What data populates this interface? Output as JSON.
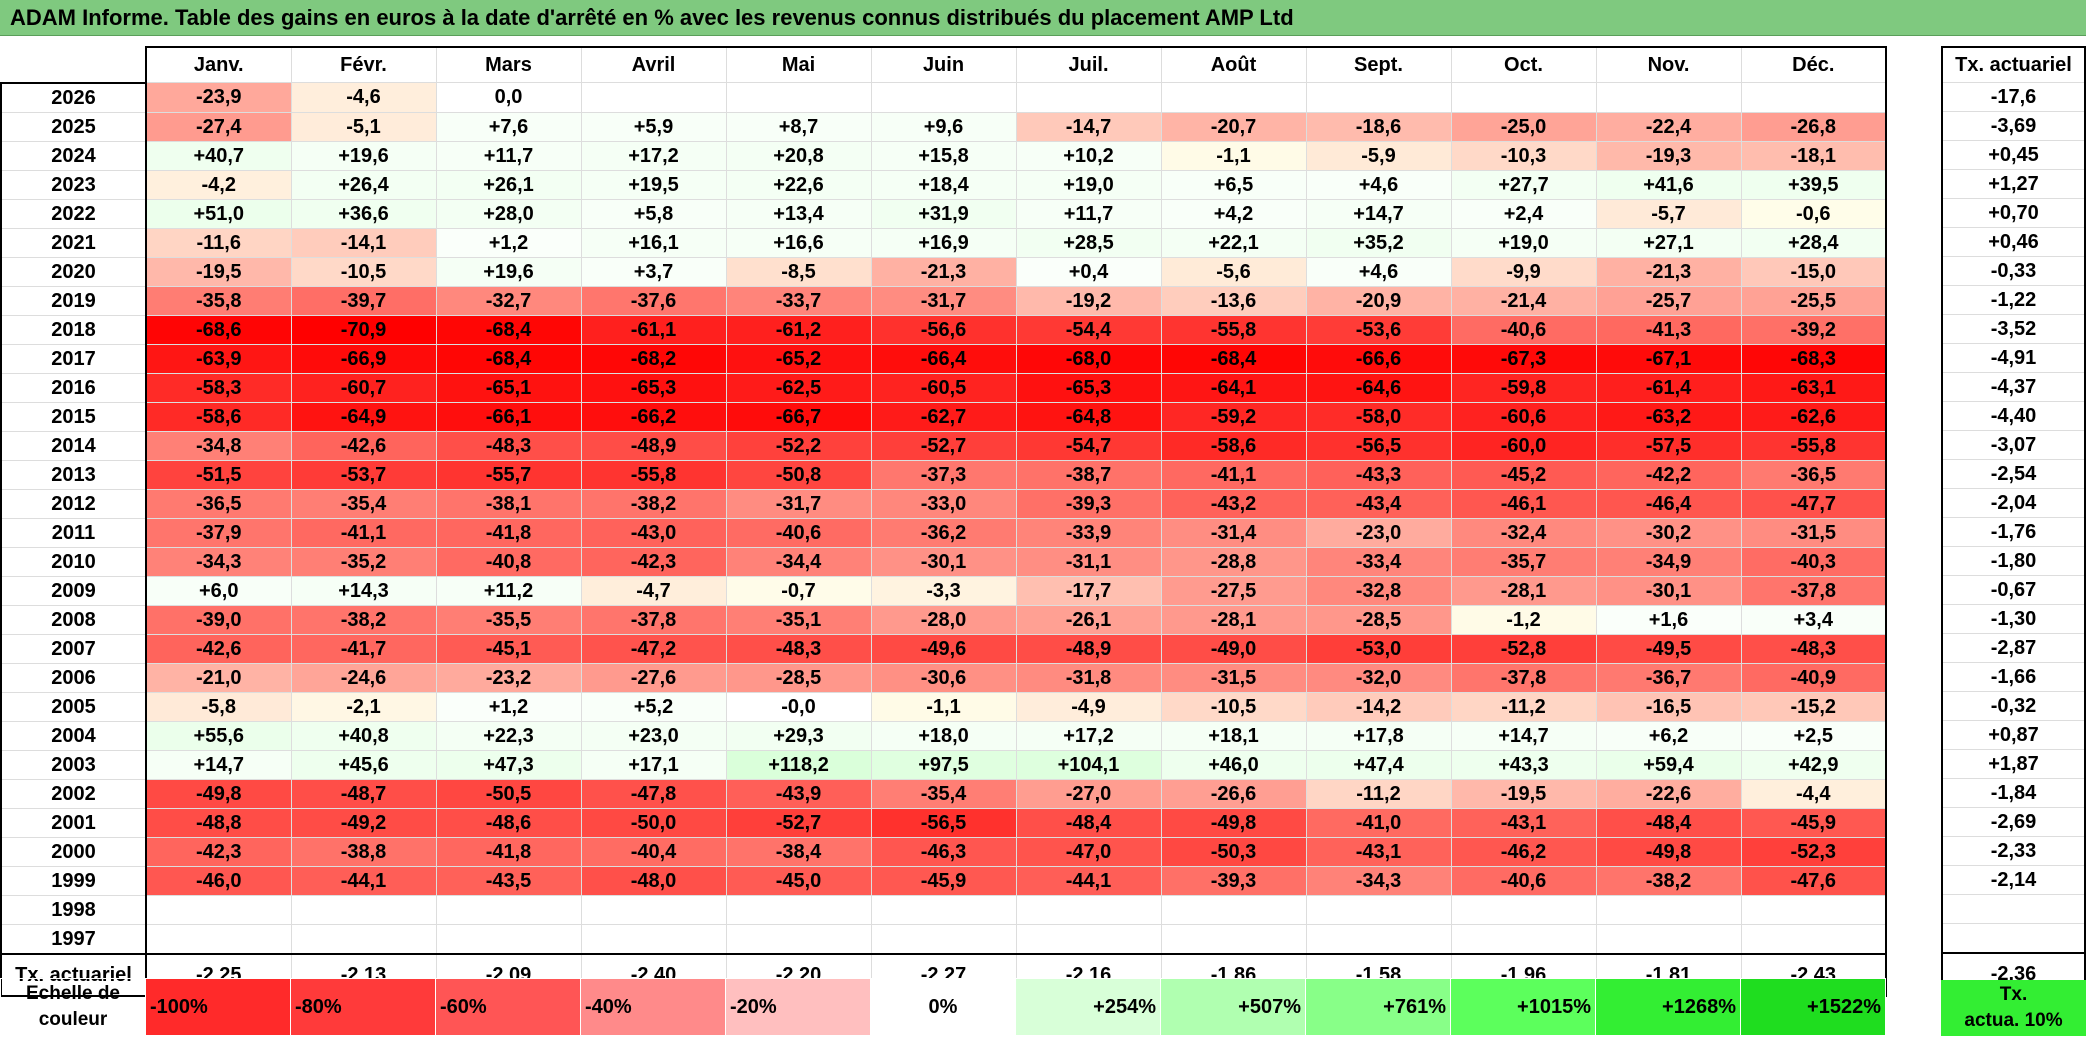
{
  "title": "ADAM Informe. Table des gains en euros à la date d'arrêté en % avec les revenus connus distribués du placement AMP Ltd",
  "months": [
    "Janv.",
    "Févr.",
    "Mars",
    "Avril",
    "Mai",
    "Juin",
    "Juil.",
    "Août",
    "Sept.",
    "Oct.",
    "Nov.",
    "Déc."
  ],
  "side_header": "Tx. actuariel",
  "rows": [
    {
      "year": "2026",
      "v": [
        "-23,9",
        "-4,6",
        "0,0",
        "",
        "",
        "",
        "",
        "",
        "",
        "",
        "",
        ""
      ],
      "tx": "-17,6"
    },
    {
      "year": "2025",
      "v": [
        "-27,4",
        "-5,1",
        "+7,6",
        "+5,9",
        "+8,7",
        "+9,6",
        "-14,7",
        "-20,7",
        "-18,6",
        "-25,0",
        "-22,4",
        "-26,8"
      ],
      "tx": "-3,69"
    },
    {
      "year": "2024",
      "v": [
        "+40,7",
        "+19,6",
        "+11,7",
        "+17,2",
        "+20,8",
        "+15,8",
        "+10,2",
        "-1,1",
        "-5,9",
        "-10,3",
        "-19,3",
        "-18,1"
      ],
      "tx": "+0,45"
    },
    {
      "year": "2023",
      "v": [
        "-4,2",
        "+26,4",
        "+26,1",
        "+19,5",
        "+22,6",
        "+18,4",
        "+19,0",
        "+6,5",
        "+4,6",
        "+27,7",
        "+41,6",
        "+39,5"
      ],
      "tx": "+1,27"
    },
    {
      "year": "2022",
      "v": [
        "+51,0",
        "+36,6",
        "+28,0",
        "+5,8",
        "+13,4",
        "+31,9",
        "+11,7",
        "+4,2",
        "+14,7",
        "+2,4",
        "-5,7",
        "-0,6"
      ],
      "tx": "+0,70"
    },
    {
      "year": "2021",
      "v": [
        "-11,6",
        "-14,1",
        "+1,2",
        "+16,1",
        "+16,6",
        "+16,9",
        "+28,5",
        "+22,1",
        "+35,2",
        "+19,0",
        "+27,1",
        "+28,4"
      ],
      "tx": "+0,46"
    },
    {
      "year": "2020",
      "v": [
        "-19,5",
        "-10,5",
        "+19,6",
        "+3,7",
        "-8,5",
        "-21,3",
        "+0,4",
        "-5,6",
        "+4,6",
        "-9,9",
        "-21,3",
        "-15,0"
      ],
      "tx": "-0,33"
    },
    {
      "year": "2019",
      "v": [
        "-35,8",
        "-39,7",
        "-32,7",
        "-37,6",
        "-33,7",
        "-31,7",
        "-19,2",
        "-13,6",
        "-20,9",
        "-21,4",
        "-25,7",
        "-25,5"
      ],
      "tx": "-1,22"
    },
    {
      "year": "2018",
      "v": [
        "-68,6",
        "-70,9",
        "-68,4",
        "-61,1",
        "-61,2",
        "-56,6",
        "-54,4",
        "-55,8",
        "-53,6",
        "-40,6",
        "-41,3",
        "-39,2"
      ],
      "tx": "-3,52"
    },
    {
      "year": "2017",
      "v": [
        "-63,9",
        "-66,9",
        "-68,4",
        "-68,2",
        "-65,2",
        "-66,4",
        "-68,0",
        "-68,4",
        "-66,6",
        "-67,3",
        "-67,1",
        "-68,3"
      ],
      "tx": "-4,91"
    },
    {
      "year": "2016",
      "v": [
        "-58,3",
        "-60,7",
        "-65,1",
        "-65,3",
        "-62,5",
        "-60,5",
        "-65,3",
        "-64,1",
        "-64,6",
        "-59,8",
        "-61,4",
        "-63,1"
      ],
      "tx": "-4,37"
    },
    {
      "year": "2015",
      "v": [
        "-58,6",
        "-64,9",
        "-66,1",
        "-66,2",
        "-66,7",
        "-62,7",
        "-64,8",
        "-59,2",
        "-58,0",
        "-60,6",
        "-63,2",
        "-62,6"
      ],
      "tx": "-4,40"
    },
    {
      "year": "2014",
      "v": [
        "-34,8",
        "-42,6",
        "-48,3",
        "-48,9",
        "-52,2",
        "-52,7",
        "-54,7",
        "-58,6",
        "-56,5",
        "-60,0",
        "-57,5",
        "-55,8"
      ],
      "tx": "-3,07"
    },
    {
      "year": "2013",
      "v": [
        "-51,5",
        "-53,7",
        "-55,7",
        "-55,8",
        "-50,8",
        "-37,3",
        "-38,7",
        "-41,1",
        "-43,3",
        "-45,2",
        "-42,2",
        "-36,5"
      ],
      "tx": "-2,54"
    },
    {
      "year": "2012",
      "v": [
        "-36,5",
        "-35,4",
        "-38,1",
        "-38,2",
        "-31,7",
        "-33,0",
        "-39,3",
        "-43,2",
        "-43,4",
        "-46,1",
        "-46,4",
        "-47,7"
      ],
      "tx": "-2,04"
    },
    {
      "year": "2011",
      "v": [
        "-37,9",
        "-41,1",
        "-41,8",
        "-43,0",
        "-40,6",
        "-36,2",
        "-33,9",
        "-31,4",
        "-23,0",
        "-32,4",
        "-30,2",
        "-31,5"
      ],
      "tx": "-1,76"
    },
    {
      "year": "2010",
      "v": [
        "-34,3",
        "-35,2",
        "-40,8",
        "-42,3",
        "-34,4",
        "-30,1",
        "-31,1",
        "-28,8",
        "-33,4",
        "-35,7",
        "-34,9",
        "-40,3"
      ],
      "tx": "-1,80"
    },
    {
      "year": "2009",
      "v": [
        "+6,0",
        "+14,3",
        "+11,2",
        "-4,7",
        "-0,7",
        "-3,3",
        "-17,7",
        "-27,5",
        "-32,8",
        "-28,1",
        "-30,1",
        "-37,8"
      ],
      "tx": "-0,67"
    },
    {
      "year": "2008",
      "v": [
        "-39,0",
        "-38,2",
        "-35,5",
        "-37,8",
        "-35,1",
        "-28,0",
        "-26,1",
        "-28,1",
        "-28,5",
        "-1,2",
        "+1,6",
        "+3,4"
      ],
      "tx": "-1,30"
    },
    {
      "year": "2007",
      "v": [
        "-42,6",
        "-41,7",
        "-45,1",
        "-47,2",
        "-48,3",
        "-49,6",
        "-48,9",
        "-49,0",
        "-53,0",
        "-52,8",
        "-49,5",
        "-48,3"
      ],
      "tx": "-2,87"
    },
    {
      "year": "2006",
      "v": [
        "-21,0",
        "-24,6",
        "-23,2",
        "-27,6",
        "-28,5",
        "-30,6",
        "-31,8",
        "-31,5",
        "-32,0",
        "-37,8",
        "-36,7",
        "-40,9"
      ],
      "tx": "-1,66"
    },
    {
      "year": "2005",
      "v": [
        "-5,8",
        "-2,1",
        "+1,2",
        "+5,2",
        "-0,0",
        "-1,1",
        "-4,9",
        "-10,5",
        "-14,2",
        "-11,2",
        "-16,5",
        "-15,2"
      ],
      "tx": "-0,32"
    },
    {
      "year": "2004",
      "v": [
        "+55,6",
        "+40,8",
        "+22,3",
        "+23,0",
        "+29,3",
        "+18,0",
        "+17,2",
        "+18,1",
        "+17,8",
        "+14,7",
        "+6,2",
        "+2,5"
      ],
      "tx": "+0,87"
    },
    {
      "year": "2003",
      "v": [
        "+14,7",
        "+45,6",
        "+47,3",
        "+17,1",
        "+118,2",
        "+97,5",
        "+104,1",
        "+46,0",
        "+47,4",
        "+43,3",
        "+59,4",
        "+42,9"
      ],
      "tx": "+1,87"
    },
    {
      "year": "2002",
      "v": [
        "-49,8",
        "-48,7",
        "-50,5",
        "-47,8",
        "-43,9",
        "-35,4",
        "-27,0",
        "-26,6",
        "-11,2",
        "-19,5",
        "-22,6",
        "-4,4"
      ],
      "tx": "-1,84"
    },
    {
      "year": "2001",
      "v": [
        "-48,8",
        "-49,2",
        "-48,6",
        "-50,0",
        "-52,7",
        "-56,5",
        "-48,4",
        "-49,8",
        "-41,0",
        "-43,1",
        "-48,4",
        "-45,9"
      ],
      "tx": "-2,69"
    },
    {
      "year": "2000",
      "v": [
        "-42,3",
        "-38,8",
        "-41,8",
        "-40,4",
        "-38,4",
        "-46,3",
        "-47,0",
        "-50,3",
        "-43,1",
        "-46,2",
        "-49,8",
        "-52,3"
      ],
      "tx": "-2,33"
    },
    {
      "year": "1999",
      "v": [
        "-46,0",
        "-44,1",
        "-43,5",
        "-48,0",
        "-45,0",
        "-45,9",
        "-44,1",
        "-39,3",
        "-34,3",
        "-40,6",
        "-38,2",
        "-47,6"
      ],
      "tx": "-2,14"
    },
    {
      "year": "1998",
      "v": [
        "",
        "",
        "",
        "",
        "",
        "",
        "",
        "",
        "",
        "",
        "",
        ""
      ],
      "tx": ""
    },
    {
      "year": "1997",
      "v": [
        "",
        "",
        "",
        "",
        "",
        "",
        "",
        "",
        "",
        "",
        "",
        ""
      ],
      "tx": ""
    }
  ],
  "totals": {
    "label": "Tx. actuariel",
    "v": [
      "-2,25",
      "-2,13",
      "-2,09",
      "-2,40",
      "-2,20",
      "-2,27",
      "-2,16",
      "-1,86",
      "-1,58",
      "-1,96",
      "-1,81",
      "-2,43"
    ],
    "overall": "-2,36"
  },
  "scale": {
    "label_line1": "Echelle de",
    "label_line2": "couleur",
    "steps": [
      {
        "text": "-100%",
        "color": "#ff2a2a"
      },
      {
        "text": "-80%",
        "color": "#ff3a3a"
      },
      {
        "text": "-60%",
        "color": "#ff5555"
      },
      {
        "text": "-40%",
        "color": "#ff8a8a"
      },
      {
        "text": "-20%",
        "color": "#ffbfbf"
      },
      {
        "text": "0%",
        "color": "#ffffff"
      },
      {
        "text": "+254%",
        "color": "#d8ffd8"
      },
      {
        "text": "+507%",
        "color": "#b0ffb0"
      },
      {
        "text": "+761%",
        "color": "#88ff88"
      },
      {
        "text": "+1015%",
        "color": "#5cff5c"
      },
      {
        "text": "+1268%",
        "color": "#33ee33"
      },
      {
        "text": "+1522%",
        "color": "#1fdd1f"
      }
    ],
    "side_line1": "Tx.",
    "side_line2": "actua. 10%",
    "side_color": "#33ee33"
  },
  "colors": {
    "title_bar": "#7fc97f",
    "negative_max": "#ff0000",
    "positive_tint": "#f3fff3"
  }
}
